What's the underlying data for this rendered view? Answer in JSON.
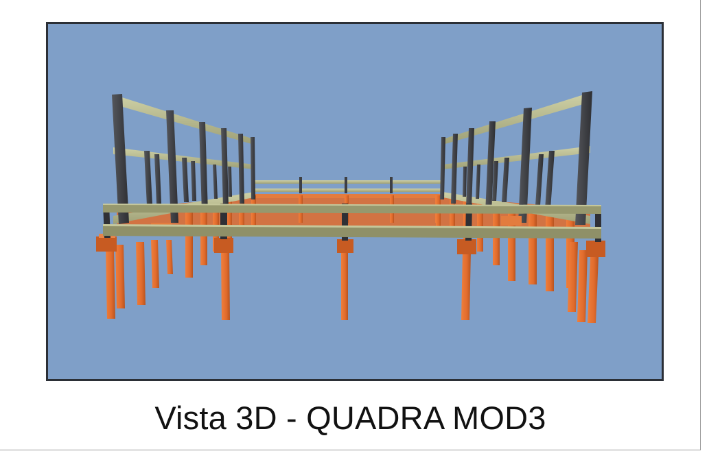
{
  "figure": {
    "caption": "Vista 3D - QUADRA MOD3"
  },
  "model_view": {
    "background_color": "#7f9fc8",
    "column_color": "#3e3f43",
    "beam_color": "#bdbf94",
    "foundation_color": "#e06b2c"
  }
}
